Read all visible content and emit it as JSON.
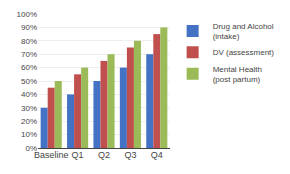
{
  "chart_data": {
    "type": "bar",
    "categories": [
      "Baseline",
      "Q1",
      "Q2",
      "Q3",
      "Q4"
    ],
    "series": [
      {
        "name": "Drug and Alcohol\n(intake)",
        "color": "#4472C4",
        "values": [
          30,
          40,
          50,
          60,
          70
        ]
      },
      {
        "name": "DV (assessment)",
        "color": "#C0504D",
        "values": [
          45,
          55,
          65,
          75,
          85
        ]
      },
      {
        "name": "Mental Health\n(post partum)",
        "color": "#9BBB59",
        "values": [
          50,
          60,
          70,
          80,
          90
        ]
      }
    ],
    "ylim": [
      0,
      100
    ],
    "yticks": [
      {
        "value": 0,
        "label": "0%"
      },
      {
        "value": 10,
        "label": "10%"
      },
      {
        "value": 20,
        "label": "20%"
      },
      {
        "value": 30,
        "label": "30%"
      },
      {
        "value": 40,
        "label": "40%"
      },
      {
        "value": 50,
        "label": "50%"
      },
      {
        "value": 60,
        "label": "60%"
      },
      {
        "value": 70,
        "label": "70%"
      },
      {
        "value": 80,
        "label": "80%"
      },
      {
        "value": 90,
        "label": "90%"
      },
      {
        "value": 100,
        "label": "100%"
      }
    ],
    "grid": true,
    "legend": "right"
  }
}
